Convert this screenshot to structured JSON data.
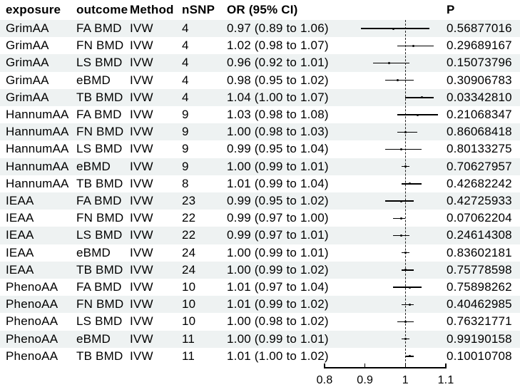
{
  "table": {
    "headers": {
      "exposure": "exposure",
      "outcome": "outcome",
      "method": "Method",
      "nsnp": "nSNP",
      "or_ci": "OR (95% CI)",
      "p": "P"
    },
    "rows": [
      {
        "exposure": "GrimAA",
        "outcome": "FA BMD",
        "method": "IVW",
        "nsnp": "4",
        "or_ci": "0.97 (0.89 to 1.06)",
        "p": "0.56877016"
      },
      {
        "exposure": "GrimAA",
        "outcome": "FN BMD",
        "method": "IVW",
        "nsnp": "4",
        "or_ci": "1.02 (0.98 to 1.07)",
        "p": "0.29689167"
      },
      {
        "exposure": "GrimAA",
        "outcome": "LS BMD",
        "method": "IVW",
        "nsnp": "4",
        "or_ci": "0.96 (0.92 to 1.01)",
        "p": "0.15073796"
      },
      {
        "exposure": "GrimAA",
        "outcome": "eBMD",
        "method": "IVW",
        "nsnp": "4",
        "or_ci": "0.98 (0.95 to 1.02)",
        "p": "0.30906783"
      },
      {
        "exposure": "GrimAA",
        "outcome": "TB BMD",
        "method": "IVW",
        "nsnp": "4",
        "or_ci": "1.04 (1.00 to 1.07)",
        "p": "0.03342810"
      },
      {
        "exposure": "HannumAA",
        "outcome": "FA BMD",
        "method": "IVW",
        "nsnp": "9",
        "or_ci": "1.03 (0.98 to 1.08)",
        "p": "0.21068347"
      },
      {
        "exposure": "HannumAA",
        "outcome": "FN BMD",
        "method": "IVW",
        "nsnp": "9",
        "or_ci": "1.00 (0.98 to 1.03)",
        "p": "0.86068418"
      },
      {
        "exposure": "HannumAA",
        "outcome": "LS BMD",
        "method": "IVW",
        "nsnp": "9",
        "or_ci": "0.99 (0.95 to 1.04)",
        "p": "0.80133275"
      },
      {
        "exposure": "HannumAA",
        "outcome": "eBMD",
        "method": "IVW",
        "nsnp": "9",
        "or_ci": "1.00 (0.99 to 1.01)",
        "p": "0.70627957"
      },
      {
        "exposure": "HannumAA",
        "outcome": "TB BMD",
        "method": "IVW",
        "nsnp": "8",
        "or_ci": "1.01 (0.99 to 1.04)",
        "p": "0.42682242"
      },
      {
        "exposure": "IEAA",
        "outcome": "FA BMD",
        "method": "IVW",
        "nsnp": "23",
        "or_ci": "0.99 (0.95 to 1.02)",
        "p": "0.42725933"
      },
      {
        "exposure": "IEAA",
        "outcome": "FN BMD",
        "method": "IVW",
        "nsnp": "22",
        "or_ci": "0.99 (0.97 to 1.00)",
        "p": "0.07062204"
      },
      {
        "exposure": "IEAA",
        "outcome": "LS BMD",
        "method": "IVW",
        "nsnp": "22",
        "or_ci": "0.99 (0.97 to 1.01)",
        "p": "0.24614308"
      },
      {
        "exposure": "IEAA",
        "outcome": "eBMD",
        "method": "IVW",
        "nsnp": "24",
        "or_ci": "1.00 (0.99 to 1.01)",
        "p": "0.83602181"
      },
      {
        "exposure": "IEAA",
        "outcome": "TB BMD",
        "method": "IVW",
        "nsnp": "24",
        "or_ci": "1.00 (0.99 to 1.02)",
        "p": "0.75778598"
      },
      {
        "exposure": "PhenoAA",
        "outcome": "FA BMD",
        "method": "IVW",
        "nsnp": "10",
        "or_ci": "1.01 (0.97 to 1.04)",
        "p": "0.75898262"
      },
      {
        "exposure": "PhenoAA",
        "outcome": "FN BMD",
        "method": "IVW",
        "nsnp": "10",
        "or_ci": "1.01 (0.99 to 1.02)",
        "p": "0.40462985"
      },
      {
        "exposure": "PhenoAA",
        "outcome": "LS BMD",
        "method": "IVW",
        "nsnp": "10",
        "or_ci": "1.00 (0.98 to 1.02)",
        "p": "0.76321771"
      },
      {
        "exposure": "PhenoAA",
        "outcome": "eBMD",
        "method": "IVW",
        "nsnp": "11",
        "or_ci": "1.00 (0.99 to 1.01)",
        "p": "0.99190158"
      },
      {
        "exposure": "PhenoAA",
        "outcome": "TB BMD",
        "method": "IVW",
        "nsnp": "11",
        "or_ci": "1.01 (1.00 to 1.02)",
        "p": "0.10010708"
      }
    ]
  },
  "axis": {
    "tick_labels": [
      "0.8",
      "0.9",
      "1",
      "1.1"
    ],
    "tick_values": [
      0.8,
      0.9,
      1,
      1.1
    ],
    "reference_value": 1
  },
  "colors": {
    "stripe": "#eef2f2",
    "text": "#000000",
    "line": "#000000",
    "reference_line": "#222222"
  },
  "chart_data": {
    "type": "scatter",
    "subtype": "forest-plot",
    "title": "",
    "xlabel": "",
    "xlim": [
      0.8,
      1.1
    ],
    "x_ticks": [
      0.8,
      0.9,
      1,
      1.1
    ],
    "reference_line": 1,
    "grid": false,
    "legend": false,
    "points": [
      {
        "exposure": "GrimAA",
        "outcome": "FA BMD",
        "method": "IVW",
        "nsnp": 4,
        "or": 0.97,
        "ci_low": 0.89,
        "ci_high": 1.06,
        "p": 0.56877016
      },
      {
        "exposure": "GrimAA",
        "outcome": "FN BMD",
        "method": "IVW",
        "nsnp": 4,
        "or": 1.02,
        "ci_low": 0.98,
        "ci_high": 1.07,
        "p": 0.29689167
      },
      {
        "exposure": "GrimAA",
        "outcome": "LS BMD",
        "method": "IVW",
        "nsnp": 4,
        "or": 0.96,
        "ci_low": 0.92,
        "ci_high": 1.01,
        "p": 0.15073796
      },
      {
        "exposure": "GrimAA",
        "outcome": "eBMD",
        "method": "IVW",
        "nsnp": 4,
        "or": 0.98,
        "ci_low": 0.95,
        "ci_high": 1.02,
        "p": 0.30906783
      },
      {
        "exposure": "GrimAA",
        "outcome": "TB BMD",
        "method": "IVW",
        "nsnp": 4,
        "or": 1.04,
        "ci_low": 1.0,
        "ci_high": 1.07,
        "p": 0.0334281
      },
      {
        "exposure": "HannumAA",
        "outcome": "FA BMD",
        "method": "IVW",
        "nsnp": 9,
        "or": 1.03,
        "ci_low": 0.98,
        "ci_high": 1.08,
        "p": 0.21068347
      },
      {
        "exposure": "HannumAA",
        "outcome": "FN BMD",
        "method": "IVW",
        "nsnp": 9,
        "or": 1.0,
        "ci_low": 0.98,
        "ci_high": 1.03,
        "p": 0.86068418
      },
      {
        "exposure": "HannumAA",
        "outcome": "LS BMD",
        "method": "IVW",
        "nsnp": 9,
        "or": 0.99,
        "ci_low": 0.95,
        "ci_high": 1.04,
        "p": 0.80133275
      },
      {
        "exposure": "HannumAA",
        "outcome": "eBMD",
        "method": "IVW",
        "nsnp": 9,
        "or": 1.0,
        "ci_low": 0.99,
        "ci_high": 1.01,
        "p": 0.70627957
      },
      {
        "exposure": "HannumAA",
        "outcome": "TB BMD",
        "method": "IVW",
        "nsnp": 8,
        "or": 1.01,
        "ci_low": 0.99,
        "ci_high": 1.04,
        "p": 0.42682242
      },
      {
        "exposure": "IEAA",
        "outcome": "FA BMD",
        "method": "IVW",
        "nsnp": 23,
        "or": 0.99,
        "ci_low": 0.95,
        "ci_high": 1.02,
        "p": 0.42725933
      },
      {
        "exposure": "IEAA",
        "outcome": "FN BMD",
        "method": "IVW",
        "nsnp": 22,
        "or": 0.99,
        "ci_low": 0.97,
        "ci_high": 1.0,
        "p": 0.07062204
      },
      {
        "exposure": "IEAA",
        "outcome": "LS BMD",
        "method": "IVW",
        "nsnp": 22,
        "or": 0.99,
        "ci_low": 0.97,
        "ci_high": 1.01,
        "p": 0.24614308
      },
      {
        "exposure": "IEAA",
        "outcome": "eBMD",
        "method": "IVW",
        "nsnp": 24,
        "or": 1.0,
        "ci_low": 0.99,
        "ci_high": 1.01,
        "p": 0.83602181
      },
      {
        "exposure": "IEAA",
        "outcome": "TB BMD",
        "method": "IVW",
        "nsnp": 24,
        "or": 1.0,
        "ci_low": 0.99,
        "ci_high": 1.02,
        "p": 0.75778598
      },
      {
        "exposure": "PhenoAA",
        "outcome": "FA BMD",
        "method": "IVW",
        "nsnp": 10,
        "or": 1.01,
        "ci_low": 0.97,
        "ci_high": 1.04,
        "p": 0.75898262
      },
      {
        "exposure": "PhenoAA",
        "outcome": "FN BMD",
        "method": "IVW",
        "nsnp": 10,
        "or": 1.01,
        "ci_low": 0.99,
        "ci_high": 1.02,
        "p": 0.40462985
      },
      {
        "exposure": "PhenoAA",
        "outcome": "LS BMD",
        "method": "IVW",
        "nsnp": 10,
        "or": 1.0,
        "ci_low": 0.98,
        "ci_high": 1.02,
        "p": 0.76321771
      },
      {
        "exposure": "PhenoAA",
        "outcome": "eBMD",
        "method": "IVW",
        "nsnp": 11,
        "or": 1.0,
        "ci_low": 0.99,
        "ci_high": 1.01,
        "p": 0.99190158
      },
      {
        "exposure": "PhenoAA",
        "outcome": "TB BMD",
        "method": "IVW",
        "nsnp": 11,
        "or": 1.01,
        "ci_low": 1.0,
        "ci_high": 1.02,
        "p": 0.10010708
      }
    ]
  }
}
